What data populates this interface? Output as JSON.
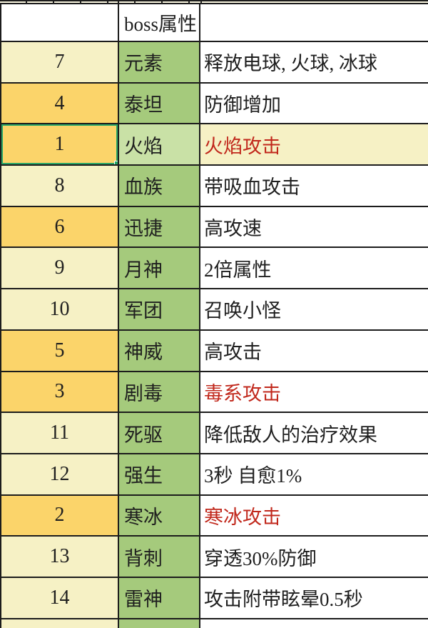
{
  "app": {
    "kind": "spreadsheet-table"
  },
  "colors": {
    "cream": "#f6f1c5",
    "orange": "#fbd46a",
    "green": "#a5ca7c",
    "lightgreen": "#c9e1a6",
    "white": "#ffffff",
    "red_text": "#c1281c",
    "black_text": "#1f1f1f",
    "selection_green": "#28a667",
    "grid_border": "#1c1c1c"
  },
  "top_strip": {
    "tick_positions": [
      36,
      74,
      112,
      150,
      188,
      226,
      264
    ]
  },
  "table": {
    "header": {
      "number_label": "",
      "attribute_label": "boss属性",
      "effect_label": ""
    },
    "rows": [
      {
        "number": "7",
        "attribute": "元素",
        "effect": "释放电球, 火球, 冰球",
        "number_bg": "cream",
        "attribute_bg": "green",
        "effect_bg": "white",
        "effect_red": false,
        "selected": false
      },
      {
        "number": "4",
        "attribute": "泰坦",
        "effect": "防御增加",
        "number_bg": "orange",
        "attribute_bg": "green",
        "effect_bg": "white",
        "effect_red": false,
        "selected": false
      },
      {
        "number": "1",
        "attribute": "火焰",
        "effect": "火焰攻击",
        "number_bg": "orange",
        "attribute_bg": "lightgreen",
        "effect_bg": "cream",
        "effect_red": true,
        "selected": true
      },
      {
        "number": "8",
        "attribute": "血族",
        "effect": "带吸血攻击",
        "number_bg": "cream",
        "attribute_bg": "green",
        "effect_bg": "white",
        "effect_red": false,
        "selected": false
      },
      {
        "number": "6",
        "attribute": "迅捷",
        "effect": "高攻速",
        "number_bg": "orange",
        "attribute_bg": "green",
        "effect_bg": "white",
        "effect_red": false,
        "selected": false
      },
      {
        "number": "9",
        "attribute": "月神",
        "effect": "2倍属性",
        "number_bg": "cream",
        "attribute_bg": "green",
        "effect_bg": "white",
        "effect_red": false,
        "selected": false
      },
      {
        "number": "10",
        "attribute": "军团",
        "effect": "召唤小怪",
        "number_bg": "cream",
        "attribute_bg": "green",
        "effect_bg": "white",
        "effect_red": false,
        "selected": false
      },
      {
        "number": "5",
        "attribute": "神威",
        "effect": "高攻击",
        "number_bg": "orange",
        "attribute_bg": "green",
        "effect_bg": "white",
        "effect_red": false,
        "selected": false
      },
      {
        "number": "3",
        "attribute": "剧毒",
        "effect": "毒系攻击",
        "number_bg": "orange",
        "attribute_bg": "green",
        "effect_bg": "white",
        "effect_red": true,
        "selected": false
      },
      {
        "number": "11",
        "attribute": "死驱",
        "effect": "降低敌人的治疗效果",
        "number_bg": "cream",
        "attribute_bg": "green",
        "effect_bg": "white",
        "effect_red": false,
        "selected": false
      },
      {
        "number": "12",
        "attribute": "强生",
        "effect": "3秒  自愈1%",
        "number_bg": "cream",
        "attribute_bg": "green",
        "effect_bg": "white",
        "effect_red": false,
        "selected": false
      },
      {
        "number": "2",
        "attribute": "寒冰",
        "effect": "寒冰攻击",
        "number_bg": "orange",
        "attribute_bg": "green",
        "effect_bg": "white",
        "effect_red": true,
        "selected": false
      },
      {
        "number": "13",
        "attribute": "背刺",
        "effect": "穿透30%防御",
        "number_bg": "cream",
        "attribute_bg": "green",
        "effect_bg": "white",
        "effect_red": false,
        "selected": false
      },
      {
        "number": "14",
        "attribute": "雷神",
        "effect": "攻击附带眩晕0.5秒",
        "number_bg": "cream",
        "attribute_bg": "green",
        "effect_bg": "white",
        "effect_red": false,
        "selected": false
      }
    ],
    "partial_bottom_row": {
      "number_bg": "cream",
      "attribute_bg": "green",
      "effect_bg": "white"
    }
  }
}
